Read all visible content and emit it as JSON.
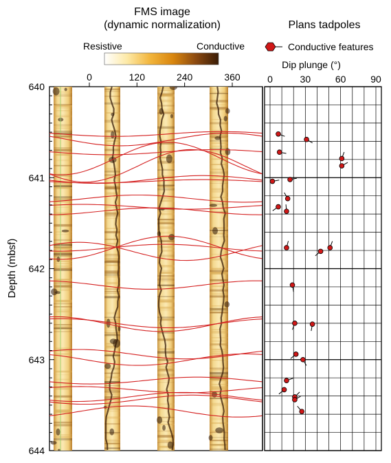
{
  "chart_data": [
    {
      "type": "image-log",
      "title": "FMS image",
      "subtitle": "(dynamic normalization)",
      "colorbar": {
        "low_label": "Resistive",
        "high_label": "Conductive",
        "colors": [
          "#ffffff",
          "#fde9a6",
          "#f2b53c",
          "#d9860e",
          "#8c4a10",
          "#3a1c06"
        ]
      },
      "x_ticks": [
        "0",
        "120",
        "240",
        "360"
      ],
      "xlim": [
        0,
        360
      ],
      "ylabel": "Depth (mbsf)",
      "y_ticks": [
        "640",
        "641",
        "642",
        "643",
        "644"
      ],
      "ylim": [
        640,
        644
      ],
      "sinusoid_color": "#d42020"
    },
    {
      "type": "scatter",
      "subtype": "tadpole",
      "title": "Plans tadpoles",
      "legend": [
        {
          "name": "Conductive features",
          "color": "#d01818"
        }
      ],
      "xlabel": "Dip plunge (°)",
      "x_ticks": [
        "0",
        "30",
        "60",
        "90"
      ],
      "xlim": [
        0,
        90
      ],
      "ylim": [
        640,
        644
      ],
      "points": [
        {
          "dip": 7,
          "depth": 640.52,
          "azimuth": 110
        },
        {
          "dip": 31,
          "depth": 640.58,
          "azimuth": 120
        },
        {
          "dip": 8,
          "depth": 640.72,
          "azimuth": 100
        },
        {
          "dip": 61,
          "depth": 640.79,
          "azimuth": 20
        },
        {
          "dip": 61,
          "depth": 640.87,
          "azimuth": 60
        },
        {
          "dip": 2,
          "depth": 641.04,
          "azimuth": 80
        },
        {
          "dip": 17,
          "depth": 641.02,
          "azimuth": 80
        },
        {
          "dip": 15,
          "depth": 641.23,
          "azimuth": 330
        },
        {
          "dip": 7,
          "depth": 641.32,
          "azimuth": 235
        },
        {
          "dip": 14,
          "depth": 641.37,
          "azimuth": 355
        },
        {
          "dip": 51,
          "depth": 641.77,
          "azimuth": 20
        },
        {
          "dip": 43,
          "depth": 641.81,
          "azimuth": 230
        },
        {
          "dip": 14,
          "depth": 641.77,
          "azimuth": 15
        },
        {
          "dip": 19,
          "depth": 642.18,
          "azimuth": 170
        },
        {
          "dip": 21,
          "depth": 642.6,
          "azimuth": 200
        },
        {
          "dip": 36,
          "depth": 642.61,
          "azimuth": 190
        },
        {
          "dip": 22,
          "depth": 642.94,
          "azimuth": 230
        },
        {
          "dip": 28,
          "depth": 643.0,
          "azimuth": 150
        },
        {
          "dip": 14,
          "depth": 643.23,
          "azimuth": 70
        },
        {
          "dip": 12,
          "depth": 643.33,
          "azimuth": 230
        },
        {
          "dip": 21,
          "depth": 643.41,
          "azimuth": 45
        },
        {
          "dip": 21,
          "depth": 643.44,
          "azimuth": 60
        },
        {
          "dip": 27,
          "depth": 643.57,
          "azimuth": 320
        }
      ]
    }
  ]
}
